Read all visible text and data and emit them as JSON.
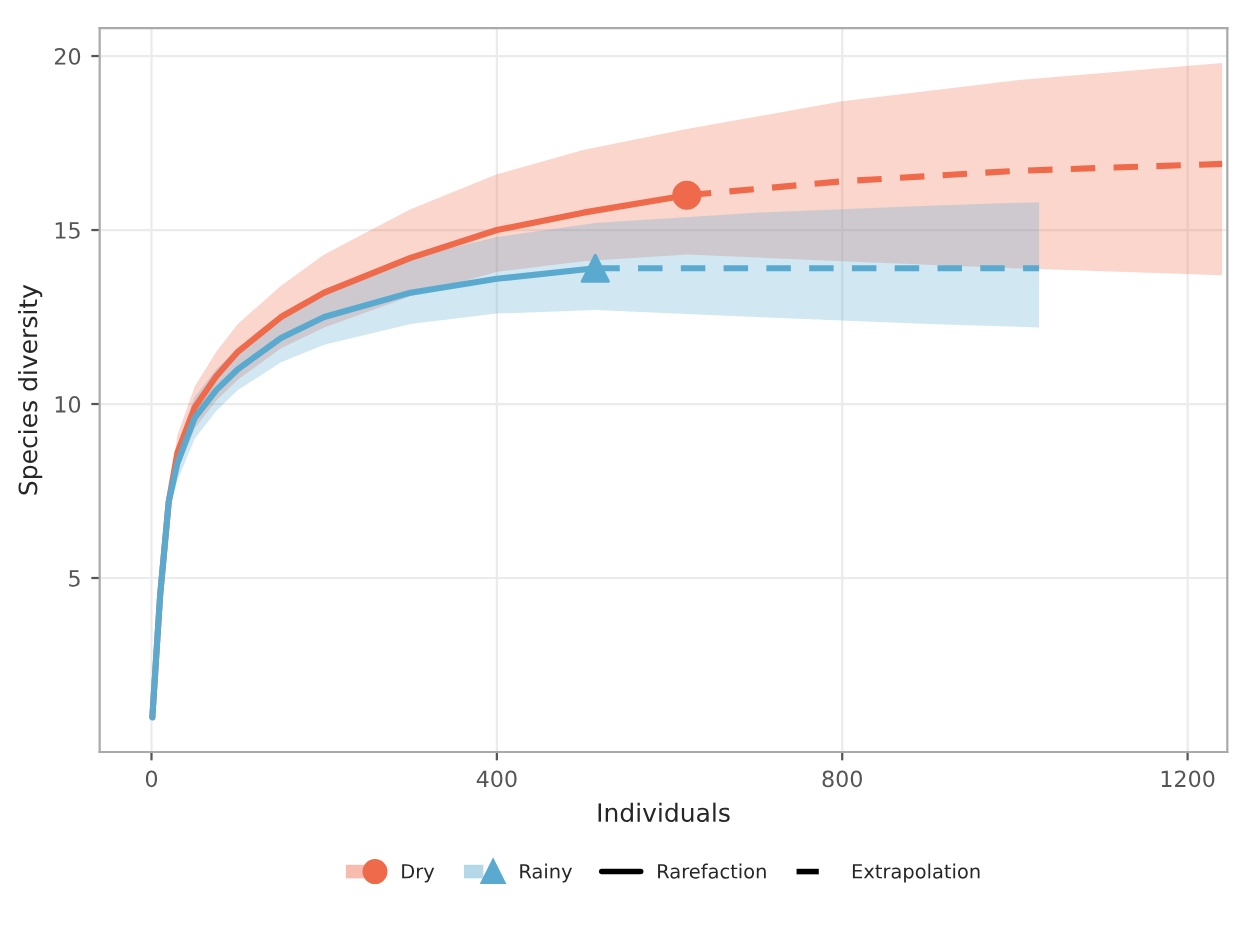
{
  "chart_data": {
    "type": "line",
    "xlabel": "Individuals",
    "ylabel": "Species diversity",
    "xlim": [
      -60,
      1246
    ],
    "ylim": [
      0.0,
      20.8
    ],
    "xticks": [
      0,
      400,
      800,
      1200
    ],
    "yticks": [
      5,
      10,
      15,
      20
    ],
    "grid": true,
    "legend": "bottom",
    "annotations": [
      "Rarefaction",
      "Extrapolation"
    ],
    "series": [
      {
        "name": "Dry",
        "color": "#ee6a4a",
        "line_style": "solid",
        "x": [
          1,
          10,
          20,
          30,
          50,
          75,
          100,
          150,
          200,
          300,
          400,
          500,
          620
        ],
        "values": [
          1,
          4.5,
          7.2,
          8.6,
          9.9,
          10.8,
          11.5,
          12.5,
          13.2,
          14.2,
          15.0,
          15.5,
          16.0
        ],
        "lower": [
          1,
          4.3,
          6.9,
          8.1,
          9.3,
          10.1,
          10.7,
          11.6,
          12.2,
          13.1,
          13.8,
          14.1,
          14.3
        ],
        "upper": [
          1,
          4.7,
          7.5,
          9.1,
          10.5,
          11.5,
          12.3,
          13.4,
          14.3,
          15.6,
          16.6,
          17.3,
          17.9
        ]
      },
      {
        "color": "#ee6a4a",
        "line_style": "dashed",
        "x": [
          620,
          800,
          1000,
          1240
        ],
        "values": [
          16.0,
          16.4,
          16.7,
          16.9
        ],
        "lower": [
          14.3,
          14.1,
          13.9,
          13.7
        ],
        "upper": [
          17.9,
          18.7,
          19.3,
          19.8
        ]
      },
      {
        "name": "Rainy",
        "color": "#5aa9cf",
        "line_style": "solid",
        "x": [
          1,
          10,
          20,
          30,
          50,
          75,
          100,
          150,
          200,
          300,
          400,
          514
        ],
        "values": [
          1,
          4.5,
          7.2,
          8.3,
          9.6,
          10.4,
          11.0,
          11.9,
          12.5,
          13.2,
          13.6,
          13.9
        ],
        "lower": [
          1,
          4.3,
          6.9,
          7.8,
          9.0,
          9.8,
          10.4,
          11.2,
          11.7,
          12.3,
          12.6,
          12.7
        ],
        "upper": [
          1,
          4.7,
          7.5,
          8.8,
          10.2,
          11.0,
          11.6,
          12.6,
          13.3,
          14.2,
          14.8,
          15.2
        ]
      },
      {
        "color": "#5aa9cf",
        "line_style": "dashed",
        "x": [
          514,
          700,
          900,
          1028
        ],
        "values": [
          13.9,
          13.9,
          13.9,
          13.9
        ],
        "lower": [
          12.7,
          12.5,
          12.3,
          12.2
        ],
        "upper": [
          15.2,
          15.5,
          15.7,
          15.8
        ]
      },
      {
        "type": "scatter",
        "color": "#ee6a4a",
        "marker": "circle",
        "x": [
          620
        ],
        "values": [
          16.0
        ]
      },
      {
        "type": "scatter",
        "color": "#5aa9cf",
        "marker": "triangle",
        "x": [
          514
        ],
        "values": [
          13.9
        ]
      }
    ]
  }
}
